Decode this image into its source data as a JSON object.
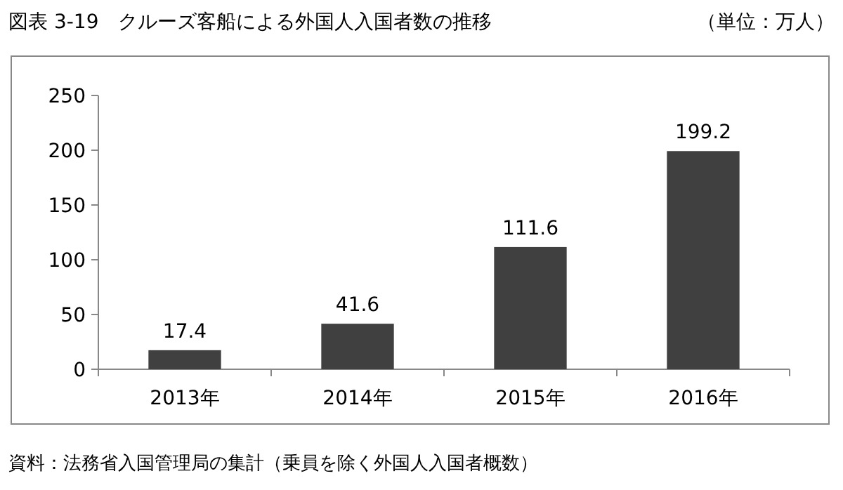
{
  "chart_data": {
    "type": "bar",
    "title": "図表 3-19　クルーズ客船による外国人入国者数の推移",
    "subtitle": "（単位：万人）",
    "categories": [
      "2013年",
      "2014年",
      "2015年",
      "2016年"
    ],
    "values": [
      17.4,
      41.6,
      111.6,
      199.2
    ],
    "color": "#404040",
    "ylim": [
      0,
      250
    ],
    "yticks": [
      0,
      50,
      100,
      150,
      200,
      250
    ],
    "data_labels": true,
    "annotations": [
      "資料：法務省入国管理局の集計（乗員を除く外国人入国者概数）"
    ]
  }
}
